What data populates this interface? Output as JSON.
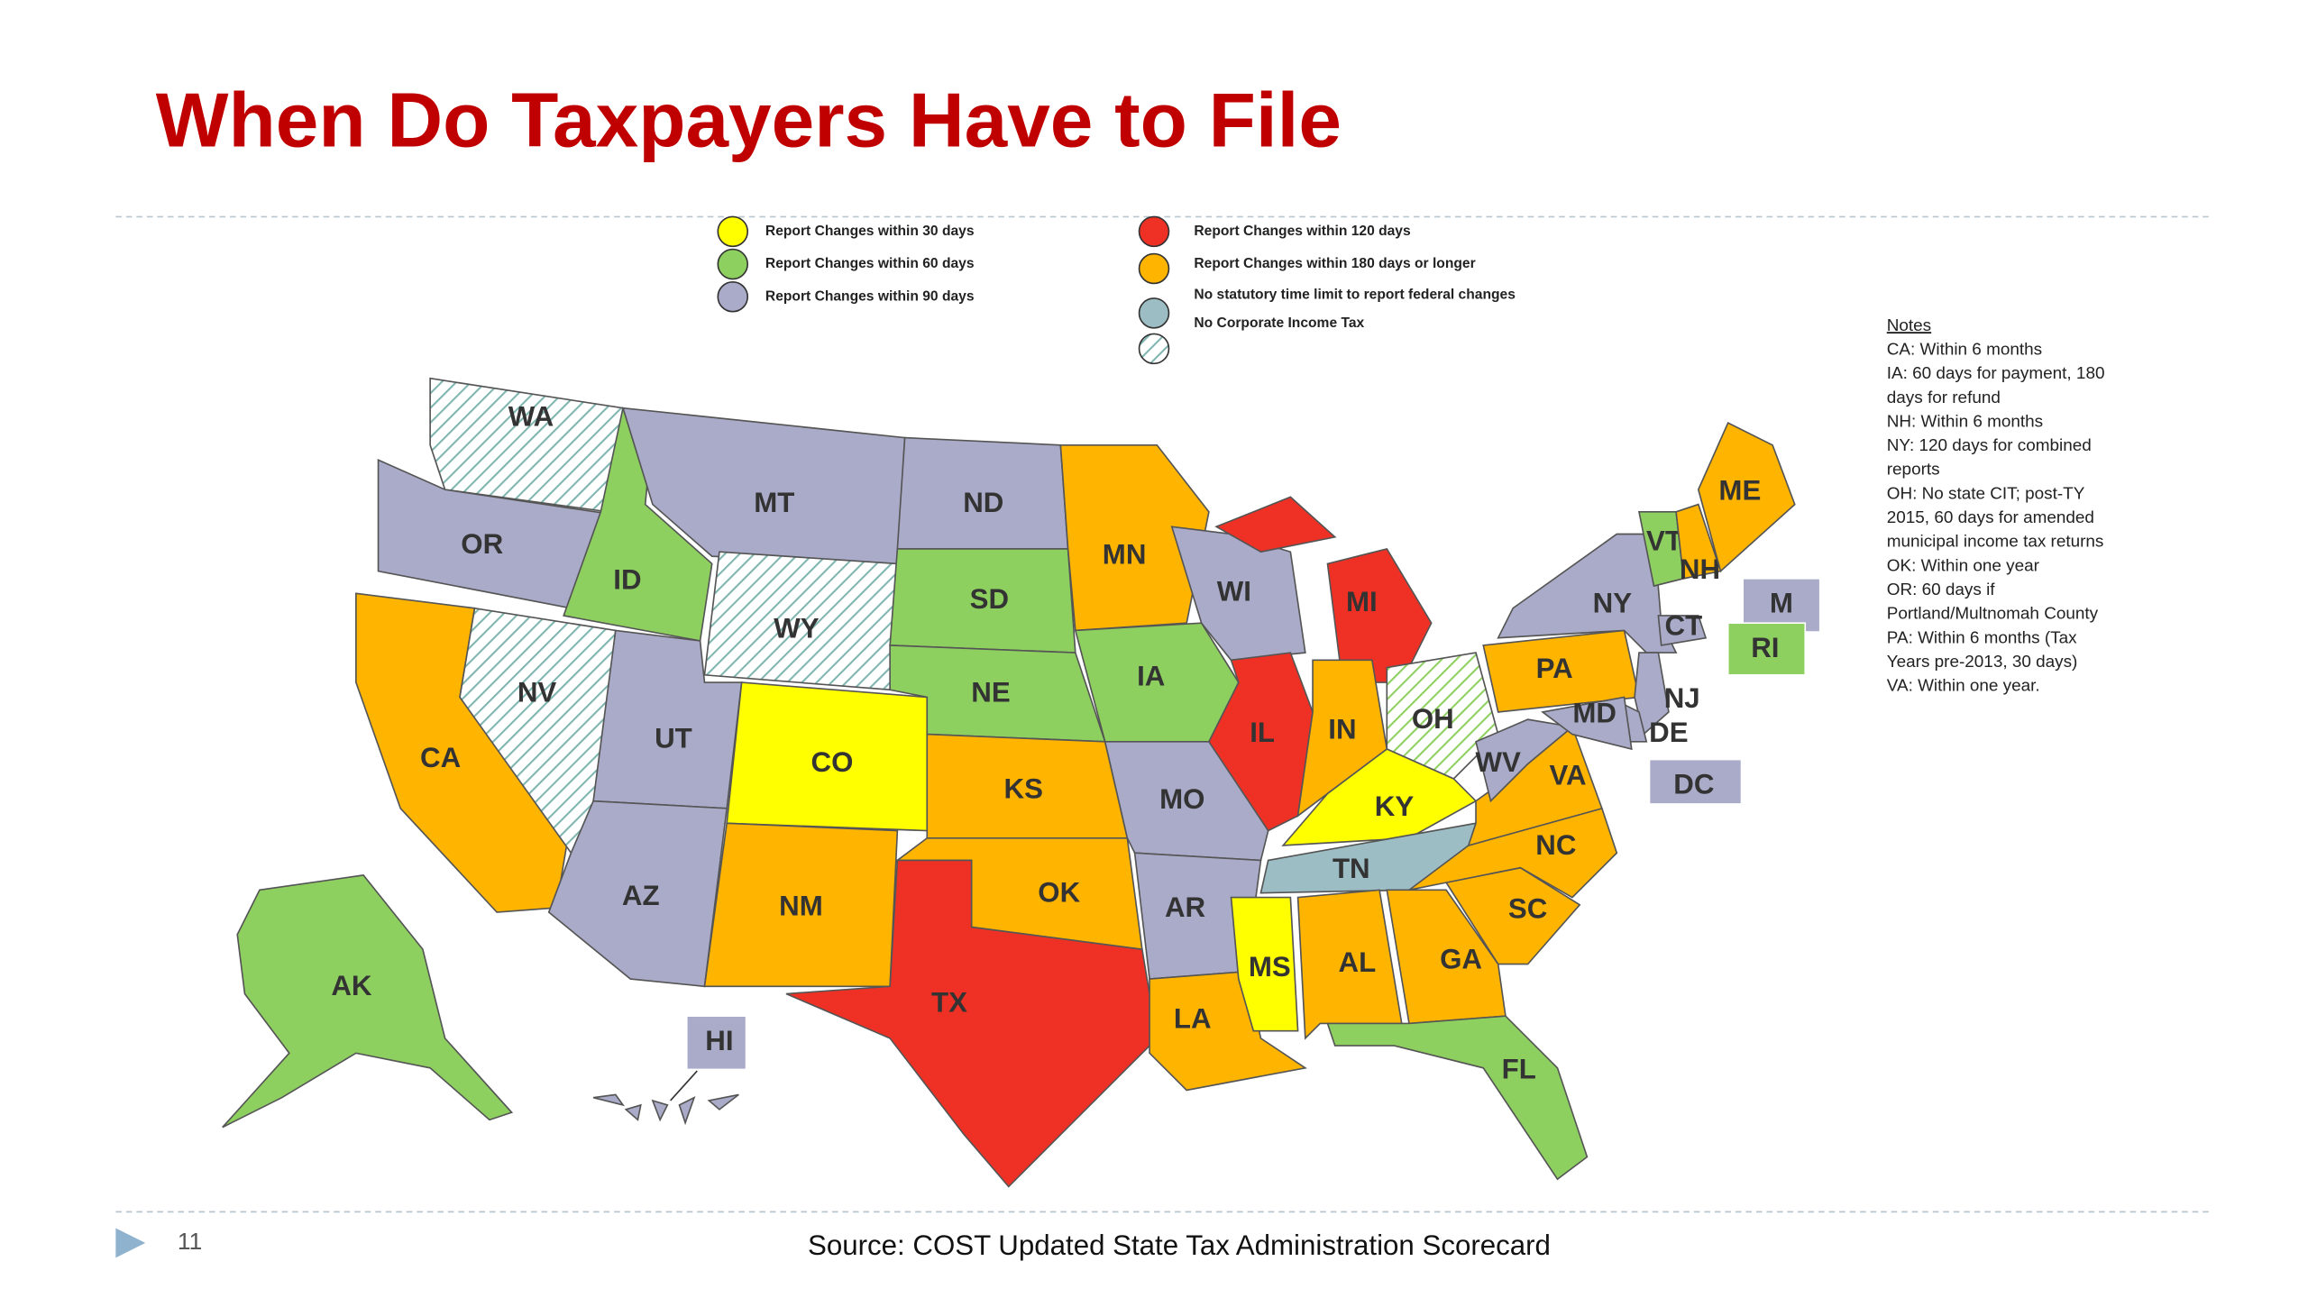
{
  "title": "When Do Taxpayers Have to File",
  "legend": [
    {
      "label": "Report Changes within 30 days",
      "color": "#ffff00"
    },
    {
      "label": "Report Changes within 60 days",
      "color": "#8ed060"
    },
    {
      "label": "Report Changes within 90 days",
      "color": "#a9abc8"
    },
    {
      "label": "Report Changes within 120 days",
      "color": "#ee3124"
    },
    {
      "label": "Report Changes within 180 days or longer",
      "color": "#ffb400"
    },
    {
      "label": "No statutory time limit to report federal changes",
      "color": "#9bbdc3"
    },
    {
      "label": "No Corporate Income Tax",
      "color": "hatch"
    }
  ],
  "notes": {
    "heading": "Notes",
    "lines": [
      "CA: Within 6 months",
      "IA: 60 days for payment, 180",
      "days for refund",
      "NH: Within 6 months",
      "NY: 120 days for combined",
      "reports",
      "OH:  No state CIT; post-TY",
      "2015, 60 days for amended",
      "municipal income tax returns",
      "OK:  Within one year",
      "OR: 60 days if",
      "Portland/Multnomah County",
      "PA:  Within 6 months (Tax",
      "Years pre-2013, 30 days)",
      "VA: Within one year."
    ]
  },
  "states": [
    {
      "label": "WA",
      "category": 6
    },
    {
      "label": "OR",
      "category": 2
    },
    {
      "label": "CA",
      "category": 4
    },
    {
      "label": "NV",
      "category": 6
    },
    {
      "label": "ID",
      "category": 1
    },
    {
      "label": "MT",
      "category": 2
    },
    {
      "label": "WY",
      "category": 6
    },
    {
      "label": "UT",
      "category": 2
    },
    {
      "label": "AZ",
      "category": 2
    },
    {
      "label": "CO",
      "category": 0
    },
    {
      "label": "NM",
      "category": 4
    },
    {
      "label": "ND",
      "category": 2
    },
    {
      "label": "SD",
      "category": 1
    },
    {
      "label": "NE",
      "category": 1
    },
    {
      "label": "KS",
      "category": 4
    },
    {
      "label": "OK",
      "category": 4
    },
    {
      "label": "TX",
      "category": 3
    },
    {
      "label": "MN",
      "category": 4
    },
    {
      "label": "IA",
      "category": 1
    },
    {
      "label": "MO",
      "category": 2
    },
    {
      "label": "AR",
      "category": 2
    },
    {
      "label": "LA",
      "category": 4
    },
    {
      "label": "WI",
      "category": 2
    },
    {
      "label": "IL",
      "category": 3
    },
    {
      "label": "MI",
      "category": 3
    },
    {
      "label": "IN",
      "category": 4
    },
    {
      "label": "OH",
      "category": 6
    },
    {
      "label": "KY",
      "category": 0
    },
    {
      "label": "TN",
      "category": 5
    },
    {
      "label": "MS",
      "category": 0
    },
    {
      "label": "AL",
      "category": 4
    },
    {
      "label": "GA",
      "category": 4
    },
    {
      "label": "FL",
      "category": 1
    },
    {
      "label": "SC",
      "category": 4
    },
    {
      "label": "NC",
      "category": 4
    },
    {
      "label": "VA",
      "category": 4
    },
    {
      "label": "WV",
      "category": 2
    },
    {
      "label": "PA",
      "category": 4
    },
    {
      "label": "NY",
      "category": 2
    },
    {
      "label": "VT",
      "category": 1
    },
    {
      "label": "NH",
      "category": 4
    },
    {
      "label": "ME",
      "category": 4
    },
    {
      "label": "M",
      "category": 2
    },
    {
      "label": "CT",
      "category": 2
    },
    {
      "label": "RI",
      "category": 1
    },
    {
      "label": "NJ",
      "category": 2
    },
    {
      "label": "DE",
      "category": 2
    },
    {
      "label": "MD",
      "category": 2
    },
    {
      "label": "AK",
      "category": 1
    },
    {
      "label": "HI",
      "category": 2
    },
    {
      "label": "DC",
      "category": 2
    }
  ],
  "page_number": "11",
  "source": "Source: COST Updated State Tax Administration Scorecard"
}
